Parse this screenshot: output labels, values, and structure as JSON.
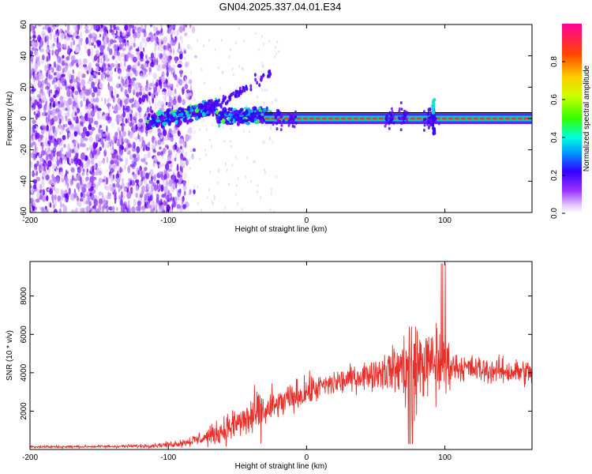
{
  "title": "GN04.2025.337.04.01.E34",
  "colors": {
    "line": "#e8302a",
    "axis": "#000000",
    "band": "#000000"
  },
  "chart_data": [
    {
      "type": "heatmap",
      "title": "GN04.2025.337.04.01.E34",
      "xlabel": "Height of straight line (km)",
      "ylabel": "Frequency (Hz)",
      "xlim": [
        -200,
        163
      ],
      "ylim": [
        -60,
        60
      ],
      "xticks": [
        -200,
        -100,
        0,
        100
      ],
      "xtick_labels": [
        "-200",
        "-100",
        "0",
        "100"
      ],
      "yticks": [
        -60,
        -40,
        -20,
        0,
        20,
        40,
        60
      ],
      "ytick_labels": [
        "-60",
        "-40",
        "-20",
        "0",
        "20",
        "40",
        "60"
      ],
      "colorbar": {
        "label": "Normalized spectral amplitude",
        "range": [
          0.0,
          1.0
        ],
        "ticks": [
          0.0,
          0.2,
          0.4,
          0.6,
          0.8
        ],
        "tick_labels": [
          "0.0",
          "0.2",
          "0.4",
          "0.6",
          "0.8"
        ]
      }
    },
    {
      "type": "line",
      "xlabel": "Height of straight line (km)",
      "ylabel": "SNR (10 * v/v)",
      "xlim": [
        -200,
        163
      ],
      "ylim": [
        0,
        9800
      ],
      "xticks": [
        -200,
        -100,
        0,
        100
      ],
      "xtick_labels": [
        "-200",
        "-100",
        "0",
        "100"
      ],
      "yticks": [
        2000,
        4000,
        6000,
        8000
      ],
      "ytick_labels": [
        "2000",
        "4000",
        "6000",
        "8000"
      ],
      "series": [
        {
          "name": "SNR",
          "x": [
            -200,
            -180,
            -160,
            -140,
            -120,
            -100,
            -90,
            -80,
            -70,
            -60,
            -50,
            -40,
            -30,
            -20,
            -10,
            0,
            10,
            20,
            30,
            40,
            50,
            60,
            70,
            75,
            80,
            85,
            90,
            95,
            100,
            105,
            110,
            120,
            130,
            140,
            150,
            163
          ],
          "y": [
            150,
            140,
            150,
            160,
            180,
            250,
            350,
            500,
            700,
            1000,
            1350,
            1650,
            2000,
            2350,
            2700,
            3000,
            3250,
            3450,
            3650,
            3850,
            4000,
            4150,
            4250,
            4300,
            4400,
            4450,
            4500,
            4550,
            4450,
            4350,
            4300,
            4200,
            4150,
            4100,
            4050,
            4000
          ],
          "noise_amplitude": [
            60,
            60,
            60,
            70,
            80,
            120,
            180,
            280,
            420,
            600,
            800,
            1000,
            1000,
            700,
            700,
            700,
            600,
            600,
            600,
            600,
            700,
            900,
            1500,
            2500,
            2000,
            1500,
            1300,
            2500,
            1500,
            700,
            600,
            600,
            600,
            600,
            600,
            600
          ]
        }
      ]
    }
  ]
}
